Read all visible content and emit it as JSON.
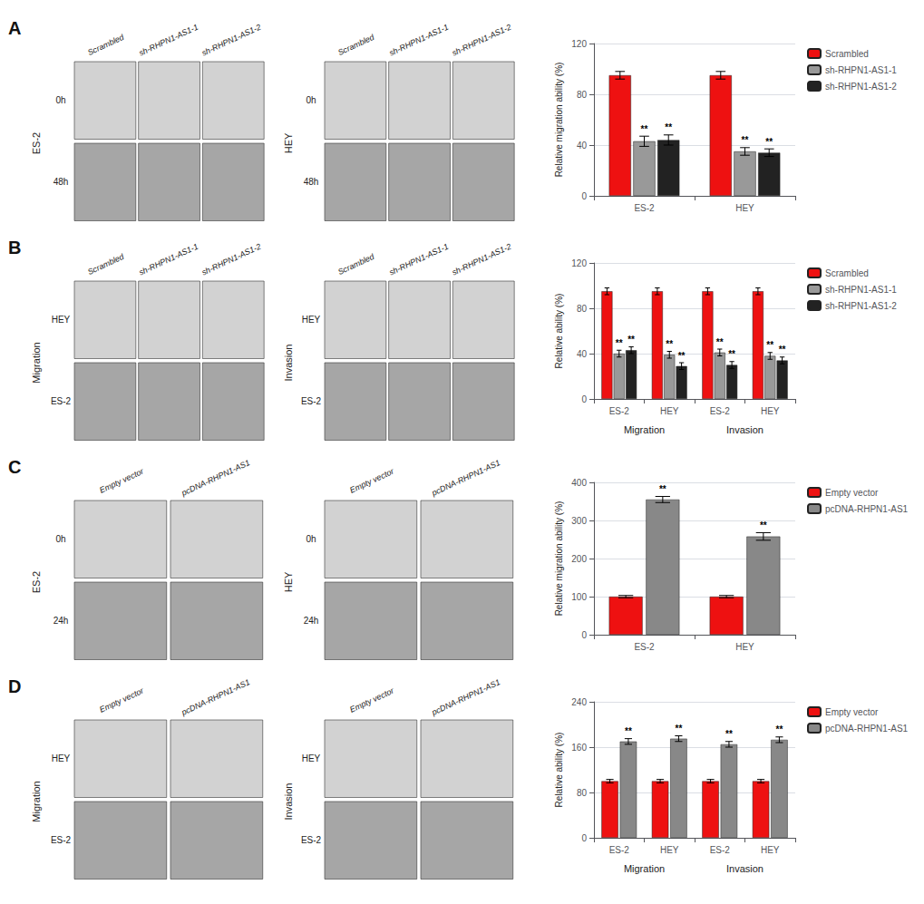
{
  "chart_data": [
    {
      "type": "bar",
      "title": "A",
      "ylabel": "Relative migration ability (%)",
      "categories": [
        "ES-2",
        "HEY"
      ],
      "series": [
        {
          "name": "Scrambled",
          "color": "#ee1111",
          "values": [
            95,
            95
          ],
          "errors": [
            3,
            3
          ],
          "significance": [
            null,
            null
          ]
        },
        {
          "name": "sh-RHPN1-AS1-1",
          "color": "#999999",
          "values": [
            43,
            35
          ],
          "errors": [
            4,
            3
          ],
          "significance": [
            "**",
            "**"
          ]
        },
        {
          "name": "sh-RHPN1-AS1-2",
          "color": "#222222",
          "values": [
            44,
            34
          ],
          "errors": [
            4,
            3
          ],
          "significance": [
            "**",
            "**"
          ]
        }
      ],
      "ylim": [
        0,
        120
      ],
      "yticks": [
        0,
        40,
        80,
        120
      ],
      "grid": true,
      "legend": "upper right",
      "images": {
        "left": {
          "label": "ES-2",
          "columns": [
            "Scrambled",
            "sh-RHPN1-AS1-1",
            "sh-RHPN1-AS1-2"
          ],
          "rows": [
            "0h",
            "48h"
          ]
        },
        "right": {
          "label": "HEY",
          "columns": [
            "Scrambled",
            "sh-RHPN1-AS1-1",
            "sh-RHPN1-AS1-2"
          ],
          "rows": [
            "0h",
            "48h"
          ]
        }
      }
    },
    {
      "type": "bar",
      "title": "B",
      "ylabel": "Relative ability (%)",
      "categories": [
        "ES-2",
        "HEY",
        "ES-2",
        "HEY"
      ],
      "group_labels": [
        "Migration",
        "Invasion"
      ],
      "series": [
        {
          "name": "Scrambled",
          "color": "#ee1111",
          "values": [
            95,
            95,
            95,
            95
          ],
          "errors": [
            3,
            3,
            3,
            3
          ],
          "significance": [
            null,
            null,
            null,
            null
          ]
        },
        {
          "name": "sh-RHPN1-AS1-1",
          "color": "#999999",
          "values": [
            40,
            39,
            41,
            38
          ],
          "errors": [
            3,
            3,
            3,
            3
          ],
          "significance": [
            "**",
            "**",
            "**",
            "**"
          ]
        },
        {
          "name": "sh-RHPN1-AS1-2",
          "color": "#222222",
          "values": [
            43,
            29,
            30,
            34
          ],
          "errors": [
            3,
            3,
            3,
            3
          ],
          "significance": [
            "**",
            "**",
            "**",
            "**"
          ]
        }
      ],
      "ylim": [
        0,
        120
      ],
      "yticks": [
        0,
        40,
        80,
        120
      ],
      "grid": true,
      "legend": "upper right",
      "images": {
        "left": {
          "label": "Migration",
          "columns": [
            "Scrambled",
            "sh-RHPN1-AS1-1",
            "sh-RHPN1-AS1-2"
          ],
          "rows": [
            "HEY",
            "ES-2"
          ]
        },
        "right": {
          "label": "Invasion",
          "columns": [
            "Scrambled",
            "sh-RHPN1-AS1-1",
            "sh-RHPN1-AS1-2"
          ],
          "rows": [
            "HEY",
            "ES-2"
          ]
        }
      }
    },
    {
      "type": "bar",
      "title": "C",
      "ylabel": "Relative migration ability (%)",
      "categories": [
        "ES-2",
        "HEY"
      ],
      "series": [
        {
          "name": "Empty vector",
          "color": "#ee1111",
          "values": [
            100,
            100
          ],
          "errors": [
            3,
            3
          ],
          "significance": [
            null,
            null
          ]
        },
        {
          "name": "pcDNA-RHPN1-AS1",
          "color": "#888888",
          "values": [
            355,
            258
          ],
          "errors": [
            8,
            10
          ],
          "significance": [
            "**",
            "**"
          ]
        }
      ],
      "ylim": [
        0,
        400
      ],
      "yticks": [
        0,
        100,
        200,
        300,
        400
      ],
      "grid": true,
      "legend": "upper right",
      "images": {
        "left": {
          "label": "ES-2",
          "columns": [
            "Empty vector",
            "pcDNA-RHPN1-AS1"
          ],
          "rows": [
            "0h",
            "24h"
          ]
        },
        "right": {
          "label": "HEY",
          "columns": [
            "Empty vector",
            "pcDNA-RHPN1-AS1"
          ],
          "rows": [
            "0h",
            "24h"
          ]
        }
      }
    },
    {
      "type": "bar",
      "title": "D",
      "ylabel": "Relative ability (%)",
      "categories": [
        "ES-2",
        "HEY",
        "ES-2",
        "HEY"
      ],
      "group_labels": [
        "Migration",
        "Invasion"
      ],
      "series": [
        {
          "name": "Empty vector",
          "color": "#ee1111",
          "values": [
            100,
            100,
            100,
            100
          ],
          "errors": [
            3,
            3,
            3,
            3
          ],
          "significance": [
            null,
            null,
            null,
            null
          ]
        },
        {
          "name": "pcDNA-RHPN1-AS1",
          "color": "#888888",
          "values": [
            170,
            175,
            165,
            173
          ],
          "errors": [
            5,
            5,
            5,
            5
          ],
          "significance": [
            "**",
            "**",
            "**",
            "**"
          ]
        }
      ],
      "ylim": [
        0,
        240
      ],
      "yticks": [
        0,
        80,
        160,
        240
      ],
      "grid": true,
      "legend": "upper right",
      "images": {
        "left": {
          "label": "Migration",
          "columns": [
            "Empty vector",
            "pcDNA-RHPN1-AS1"
          ],
          "rows": [
            "HEY",
            "ES-2"
          ]
        },
        "right": {
          "label": "Invasion",
          "columns": [
            "Empty vector",
            "pcDNA-RHPN1-AS1"
          ],
          "rows": [
            "HEY",
            "ES-2"
          ]
        }
      }
    }
  ]
}
